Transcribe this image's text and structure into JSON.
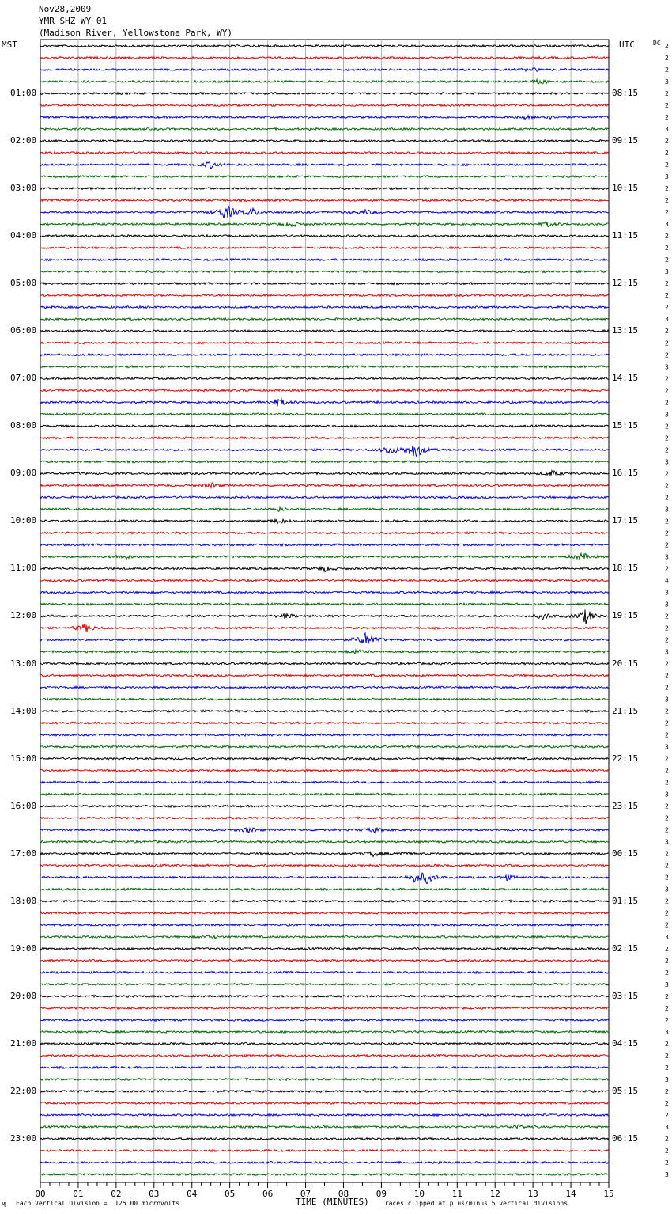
{
  "header": {
    "date": "Nov28,2009",
    "station": "YMR SHZ WY 01",
    "location": "(Madison River, Yellowstone Park, WY)"
  },
  "left_timezone": "MST",
  "right_timezone": "UTC",
  "dc_label": "DC",
  "chart_data": {
    "type": "line",
    "title": "YMR SHZ WY 01",
    "xlabel": "TIME (MINUTES)",
    "x_range": [
      0,
      15
    ],
    "x_ticks": [
      "00",
      "01",
      "02",
      "03",
      "04",
      "05",
      "06",
      "07",
      "08",
      "09",
      "10",
      "11",
      "12",
      "13",
      "14",
      "15"
    ],
    "trace_count": 96,
    "traces_per_hour": 4,
    "trace_colors": [
      "#000000",
      "#e00000",
      "#0000e0",
      "#006600"
    ],
    "left_hour_labels": [
      "01:00",
      "02:00",
      "03:00",
      "04:00",
      "05:00",
      "06:00",
      "07:00",
      "08:00",
      "09:00",
      "10:00",
      "11:00",
      "12:00",
      "13:00",
      "14:00",
      "15:00",
      "16:00",
      "17:00",
      "18:00",
      "19:00",
      "20:00",
      "21:00",
      "22:00",
      "23:00"
    ],
    "right_hour_labels": [
      "08:15",
      "09:15",
      "10:15",
      "11:15",
      "12:15",
      "13:15",
      "14:15",
      "15:15",
      "16:15",
      "17:15",
      "18:15",
      "19:15",
      "20:15",
      "21:15",
      "22:15",
      "23:15",
      "00:15",
      "01:15",
      "02:15",
      "03:15",
      "04:15",
      "05:15",
      "06:15"
    ],
    "dc_offsets": [
      "2",
      "2",
      "2",
      "3",
      "2",
      "2",
      "2",
      "3",
      "2",
      "2",
      "2",
      "3",
      "2",
      "2",
      "2",
      "3",
      "2",
      "2",
      "2",
      "3",
      "2",
      "2",
      "2",
      "3",
      "2",
      "2",
      "2",
      "3",
      "2",
      "2",
      "2",
      "3",
      "2",
      "2",
      "2",
      "3",
      "2",
      "2",
      "2",
      "3",
      "2",
      "2",
      "2",
      "3",
      "2",
      "4",
      "3",
      "3",
      "2",
      "2",
      "2",
      "3",
      "2",
      "2",
      "2",
      "3",
      "2",
      "2",
      "2",
      "3",
      "2",
      "2",
      "2",
      "3",
      "2",
      "2",
      "2",
      "3",
      "2",
      "2",
      "2",
      "3",
      "2",
      "2",
      "2",
      "3",
      "2",
      "2",
      "2",
      "3",
      "2",
      "2",
      "2",
      "3",
      "2",
      "2",
      "2",
      "3",
      "2",
      "2",
      "2",
      "3",
      "2",
      "2",
      "2",
      "3"
    ],
    "events": [
      {
        "trace": 2,
        "minute": 13.0,
        "amplitude": 2
      },
      {
        "trace": 3,
        "minute": 13.2,
        "amplitude": 3
      },
      {
        "trace": 6,
        "minute": 12.8,
        "amplitude": 2
      },
      {
        "trace": 6,
        "minute": 13.4,
        "amplitude": 2
      },
      {
        "trace": 10,
        "minute": 4.5,
        "amplitude": 4
      },
      {
        "trace": 14,
        "minute": 4.9,
        "amplitude": 10
      },
      {
        "trace": 14,
        "minute": 5.6,
        "amplitude": 5
      },
      {
        "trace": 14,
        "minute": 8.6,
        "amplitude": 3
      },
      {
        "trace": 15,
        "minute": 6.6,
        "amplitude": 3
      },
      {
        "trace": 15,
        "minute": 13.4,
        "amplitude": 3
      },
      {
        "trace": 30,
        "minute": 6.3,
        "amplitude": 5
      },
      {
        "trace": 34,
        "minute": 9.9,
        "amplitude": 11
      },
      {
        "trace": 34,
        "minute": 9.2,
        "amplitude": 5
      },
      {
        "trace": 36,
        "minute": 13.5,
        "amplitude": 3
      },
      {
        "trace": 37,
        "minute": 4.5,
        "amplitude": 3
      },
      {
        "trace": 39,
        "minute": 6.3,
        "amplitude": 2
      },
      {
        "trace": 40,
        "minute": 6.3,
        "amplitude": 3
      },
      {
        "trace": 43,
        "minute": 2.2,
        "amplitude": 3
      },
      {
        "trace": 43,
        "minute": 14.3,
        "amplitude": 4
      },
      {
        "trace": 44,
        "minute": 7.5,
        "amplitude": 3
      },
      {
        "trace": 48,
        "minute": 14.4,
        "amplitude": 9
      },
      {
        "trace": 48,
        "minute": 13.3,
        "amplitude": 4
      },
      {
        "trace": 48,
        "minute": 6.5,
        "amplitude": 3
      },
      {
        "trace": 49,
        "minute": 1.2,
        "amplitude": 5
      },
      {
        "trace": 50,
        "minute": 8.6,
        "amplitude": 9
      },
      {
        "trace": 51,
        "minute": 8.3,
        "amplitude": 2
      },
      {
        "trace": 66,
        "minute": 5.5,
        "amplitude": 3
      },
      {
        "trace": 66,
        "minute": 8.8,
        "amplitude": 3
      },
      {
        "trace": 68,
        "minute": 8.8,
        "amplitude": 3
      },
      {
        "trace": 68,
        "minute": 9.5,
        "amplitude": 2
      },
      {
        "trace": 70,
        "minute": 9.9,
        "amplitude": 5
      },
      {
        "trace": 70,
        "minute": 10.2,
        "amplitude": 6
      },
      {
        "trace": 70,
        "minute": 12.3,
        "amplitude": 3
      },
      {
        "trace": 75,
        "minute": 4.5,
        "amplitude": 2
      },
      {
        "trace": 91,
        "minute": 12.6,
        "amplitude": 2
      }
    ]
  },
  "footer": {
    "scale_text": "Each Vertical Division =  125.00 microvolts",
    "axis_title": "TIME (MINUTES)",
    "clip_text": "Traces clipped at plus/minus 5 vertical divisions",
    "corner_mark": "M"
  }
}
